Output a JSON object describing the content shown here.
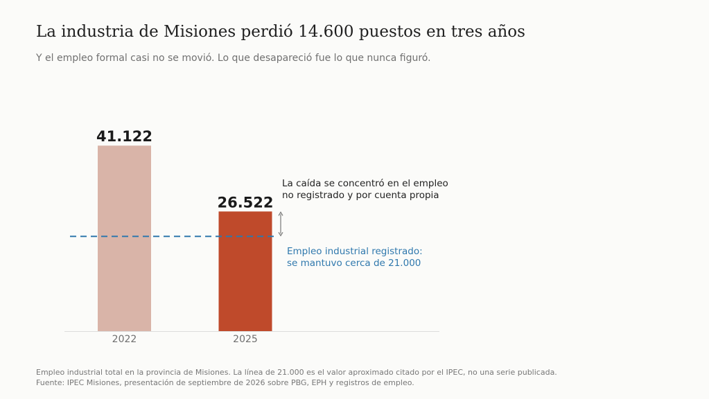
{
  "title": "La industria de Misiones perdió 14.600 puestos en tres años",
  "subtitle": "Y el empleo formal casi no se movió. Lo que desapareció fue lo que nunca figuró.",
  "chart_data": {
    "type": "bar",
    "categories": [
      "2022",
      "2025"
    ],
    "values": [
      41122,
      26522
    ],
    "value_labels": [
      "41.122",
      "26.522"
    ],
    "colors": [
      "#d9b4a8",
      "#bf4a2b"
    ],
    "ylim": [
      0,
      43000
    ],
    "grid": false,
    "reference_line": {
      "value": 21000,
      "style": "dashed",
      "color": "#2f78ad",
      "label": [
        "Empleo industrial registrado:",
        "se mantuvo cerca de 21.000"
      ]
    },
    "annotation": {
      "text": [
        "La caída se concentró en el empleo",
        "no registrado y por cuenta propia"
      ],
      "arrow_from": 26522,
      "arrow_to": 21000
    }
  },
  "footnote": {
    "line1": "Empleo industrial total en la provincia de Misiones. La línea de 21.000 es el valor aproximado citado por el IPEC, no una serie publicada.",
    "line2": "Fuente: IPEC Misiones, presentación de septiembre de 2026 sobre PBG, EPH y registros de empleo."
  }
}
